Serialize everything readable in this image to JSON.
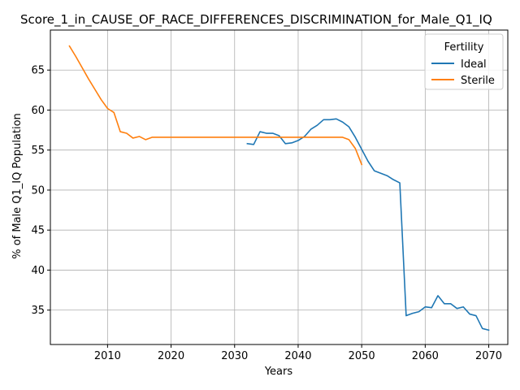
{
  "chart_data": {
    "type": "line",
    "title": "Score_1_in_CAUSE_OF_RACE_DIFFERENCES_DISCRIMINATION_for_Male_Q1_IQ",
    "xlabel": "Years",
    "ylabel": "% of Male Q1_IQ Population",
    "xlim": [
      2001,
      2073
    ],
    "ylim": [
      30.7,
      70.0
    ],
    "xticks": [
      2010,
      2020,
      2030,
      2040,
      2050,
      2060,
      2070
    ],
    "yticks": [
      35,
      40,
      45,
      50,
      55,
      60,
      65
    ],
    "grid": true,
    "legend": {
      "title": "Fertility",
      "placement": "top-right"
    },
    "series": [
      {
        "name": "Ideal",
        "color": "#1f77b4",
        "x": [
          2032,
          2033,
          2034,
          2035,
          2036,
          2037,
          2038,
          2039,
          2040,
          2041,
          2042,
          2043,
          2044,
          2045,
          2046,
          2047,
          2048,
          2049,
          2050,
          2051,
          2052,
          2053,
          2054,
          2055,
          2056,
          2057,
          2058,
          2059,
          2060,
          2061,
          2062,
          2063,
          2064,
          2065,
          2066,
          2067,
          2068,
          2069,
          2070
        ],
        "values": [
          55.8,
          55.7,
          57.3,
          57.1,
          57.1,
          56.8,
          55.8,
          55.9,
          56.2,
          56.7,
          57.6,
          58.1,
          58.8,
          58.8,
          58.9,
          58.5,
          57.9,
          56.6,
          55.1,
          53.6,
          52.4,
          52.1,
          51.8,
          51.3,
          50.9,
          34.3,
          34.6,
          34.8,
          35.4,
          35.3,
          36.8,
          35.8,
          35.8,
          35.2,
          35.4,
          34.5,
          34.3,
          32.7,
          32.5
        ]
      },
      {
        "name": "Sterile",
        "color": "#ff7f0e",
        "x": [
          2004,
          2005,
          2006,
          2007,
          2008,
          2009,
          2010,
          2011,
          2012,
          2013,
          2014,
          2015,
          2016,
          2017,
          2018,
          2019,
          2020,
          2021,
          2022,
          2023,
          2024,
          2025,
          2026,
          2027,
          2028,
          2029,
          2030,
          2031,
          2032,
          2033,
          2034,
          2035,
          2036,
          2037,
          2038,
          2039,
          2040,
          2041,
          2042,
          2043,
          2044,
          2045,
          2046,
          2047,
          2048,
          2049,
          2050
        ],
        "values": [
          68.0,
          66.7,
          65.3,
          63.9,
          62.6,
          61.3,
          60.2,
          59.7,
          57.3,
          57.1,
          56.5,
          56.7,
          56.3,
          56.6,
          56.6,
          56.6,
          56.6,
          56.6,
          56.6,
          56.6,
          56.6,
          56.6,
          56.6,
          56.6,
          56.6,
          56.6,
          56.6,
          56.6,
          56.6,
          56.6,
          56.6,
          56.6,
          56.6,
          56.6,
          56.6,
          56.6,
          56.6,
          56.6,
          56.6,
          56.6,
          56.6,
          56.6,
          56.6,
          56.6,
          56.3,
          55.2,
          53.2
        ]
      }
    ]
  }
}
